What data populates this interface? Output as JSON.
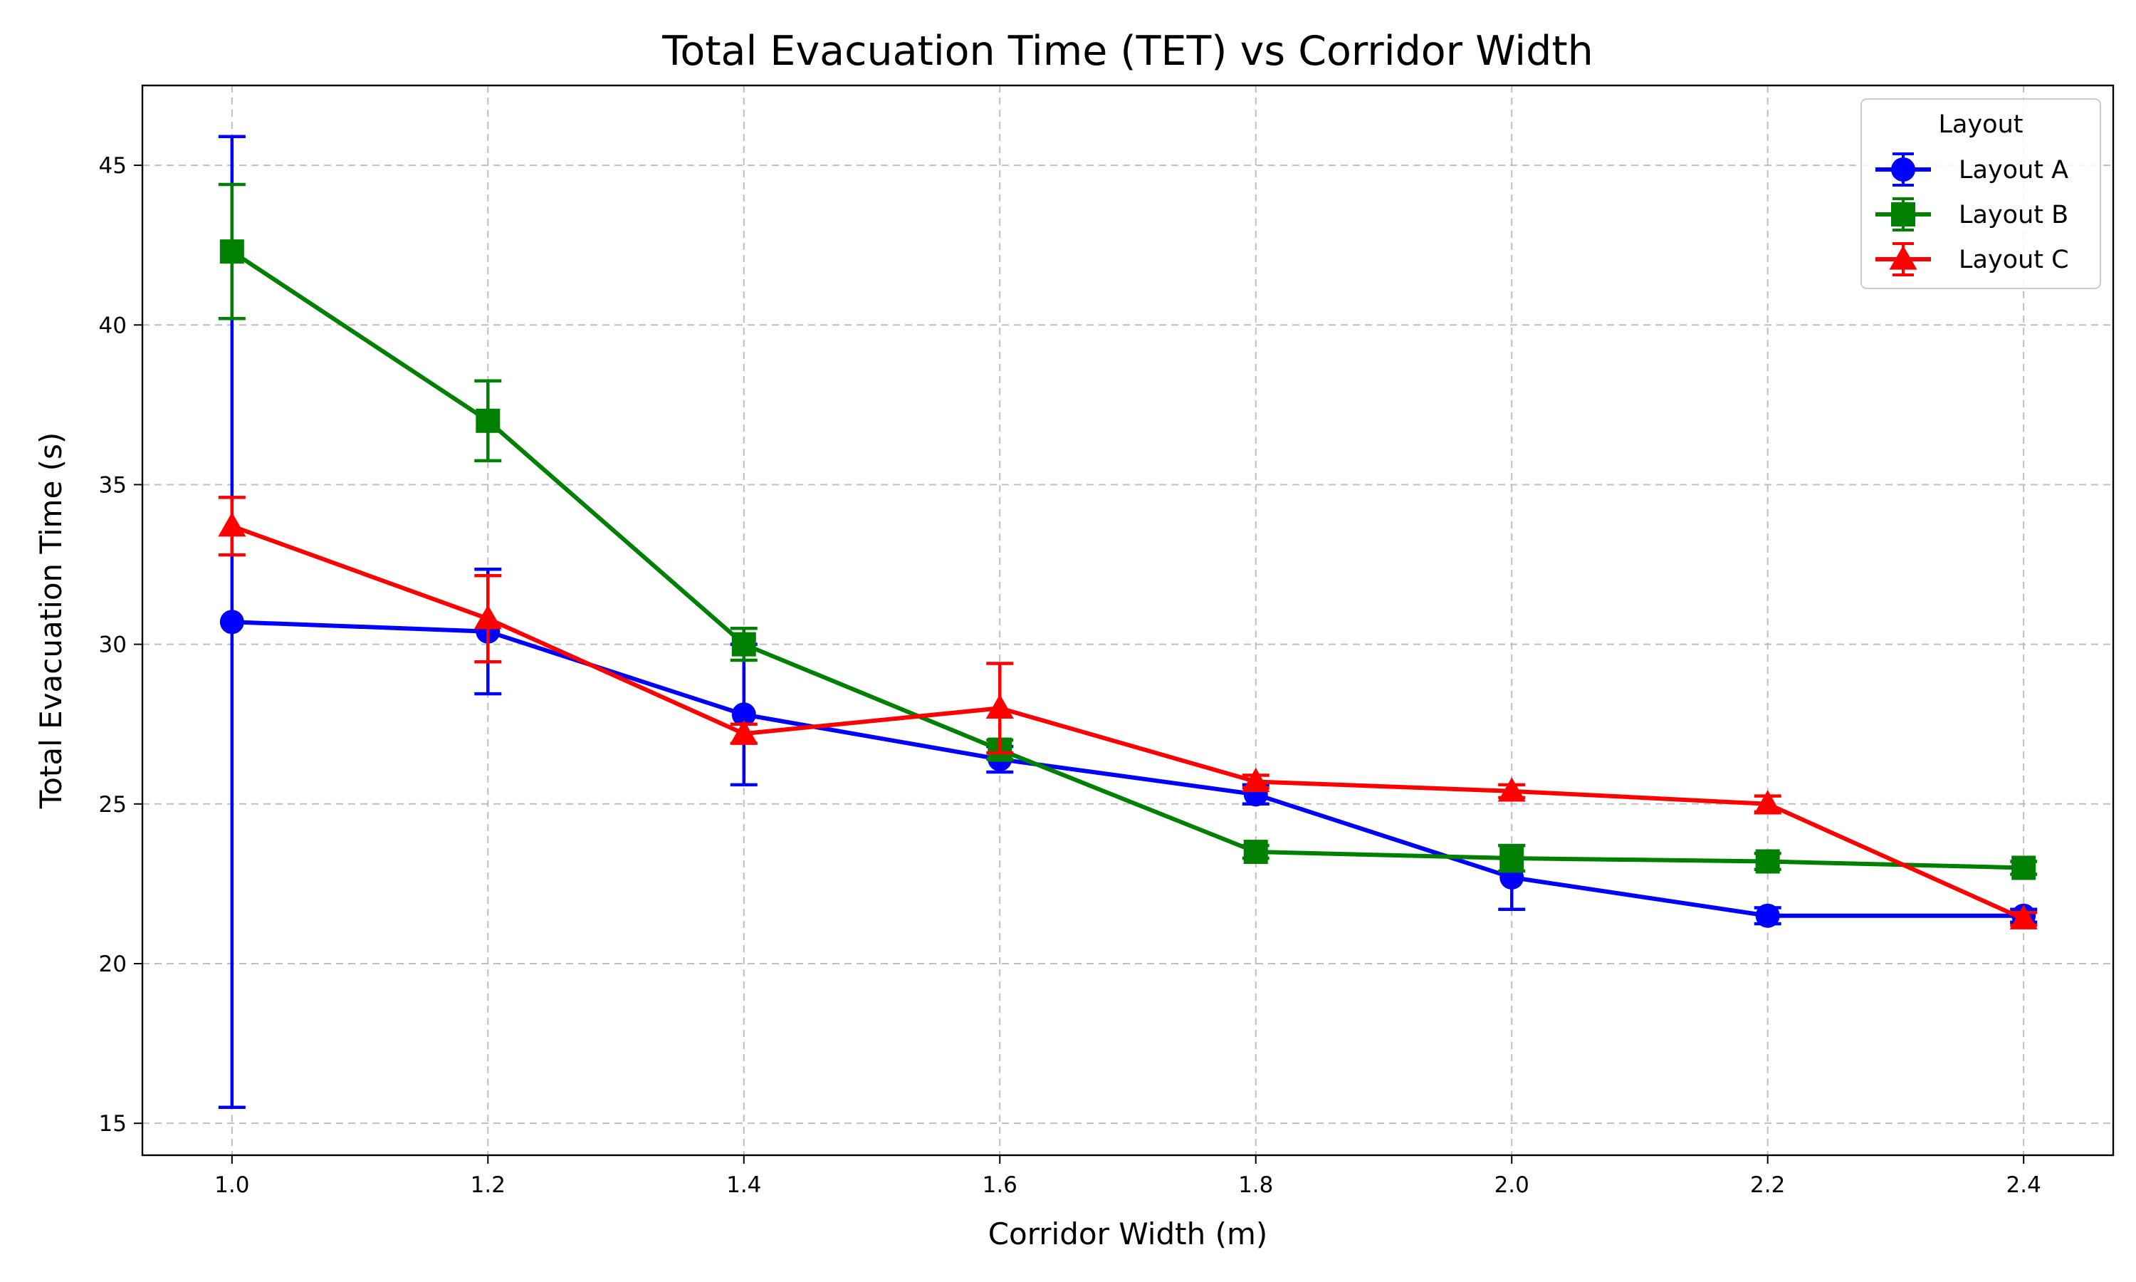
{
  "chart_data": {
    "type": "line",
    "title": "Total Evacuation Time (TET) vs Corridor Width",
    "xlabel": "Corridor Width (m)",
    "ylabel": "Total Evacuation Time (s)",
    "xlim": [
      0.93,
      2.47
    ],
    "ylim": [
      14,
      47.5
    ],
    "x": [
      1.0,
      1.2,
      1.4,
      1.6,
      1.8,
      2.0,
      2.2,
      2.4
    ],
    "x_tick_labels": [
      "1.0",
      "1.2",
      "1.4",
      "1.6",
      "1.8",
      "2.0",
      "2.2",
      "2.4"
    ],
    "y_ticks": [
      15,
      20,
      25,
      30,
      35,
      40,
      45
    ],
    "grid": true,
    "legend": {
      "title": "Layout",
      "placement": "top-right"
    },
    "series": [
      {
        "name": "Layout A",
        "color": "#0000ff",
        "marker": "circle",
        "values": [
          30.7,
          30.4,
          27.8,
          26.4,
          25.3,
          22.7,
          21.5,
          21.5
        ],
        "errors": [
          15.2,
          1.95,
          2.2,
          0.4,
          0.3,
          1.0,
          0.25,
          0.2
        ]
      },
      {
        "name": "Layout B",
        "color": "#008000",
        "marker": "square",
        "values": [
          42.3,
          37.0,
          30.0,
          26.7,
          23.5,
          23.3,
          23.2,
          23.0
        ],
        "errors": [
          2.1,
          1.25,
          0.5,
          0.3,
          0.2,
          0.4,
          0.25,
          0.2
        ]
      },
      {
        "name": "Layout C",
        "color": "#ff0000",
        "marker": "triangle",
        "values": [
          33.7,
          30.8,
          27.2,
          28.0,
          25.7,
          25.4,
          25.0,
          21.4
        ],
        "errors": [
          0.9,
          1.35,
          0.3,
          1.4,
          0.2,
          0.2,
          0.25,
          0.2
        ]
      }
    ]
  }
}
